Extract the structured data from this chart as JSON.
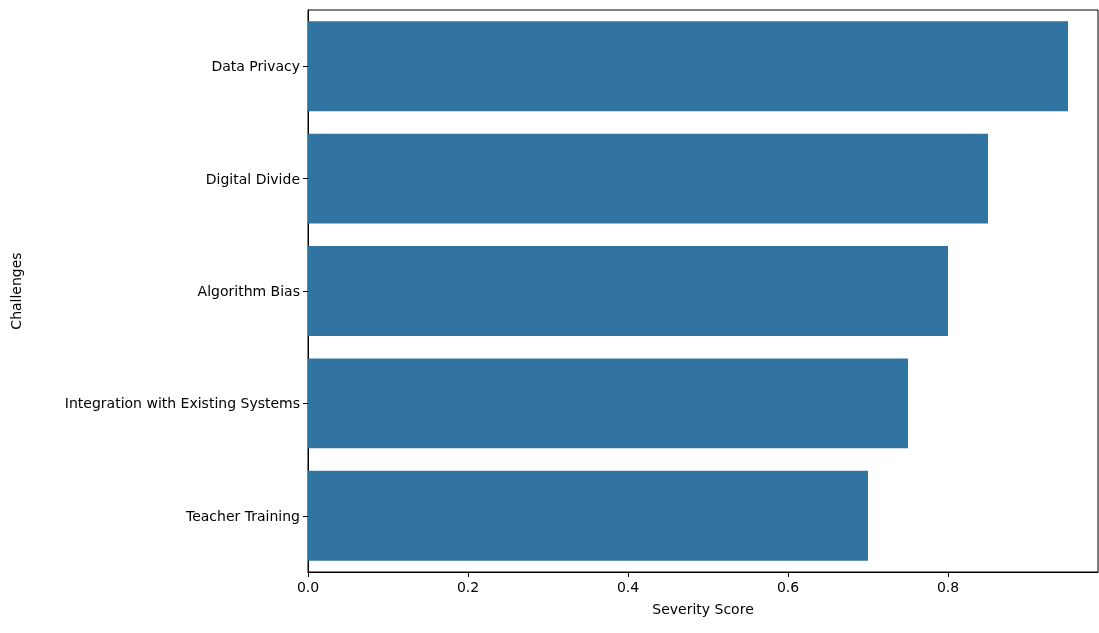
{
  "chart_data": {
    "type": "bar",
    "orientation": "horizontal",
    "xlabel": "Severity Score",
    "ylabel": "Challenges",
    "categories": [
      "Data Privacy",
      "Digital Divide",
      "Algorithm Bias",
      "Integration with Existing Systems",
      "Teacher Training"
    ],
    "values": [
      0.95,
      0.85,
      0.8,
      0.75,
      0.7
    ],
    "color": "#3274a1",
    "xlim": [
      0,
      0.9875
    ],
    "xticks": [
      {
        "value": 0,
        "label": "0.0"
      },
      {
        "value": 0.2,
        "label": "0.2"
      },
      {
        "value": 0.4,
        "label": "0.4"
      },
      {
        "value": 0.6,
        "label": "0.6"
      },
      {
        "value": 0.8,
        "label": "0.8"
      }
    ]
  }
}
